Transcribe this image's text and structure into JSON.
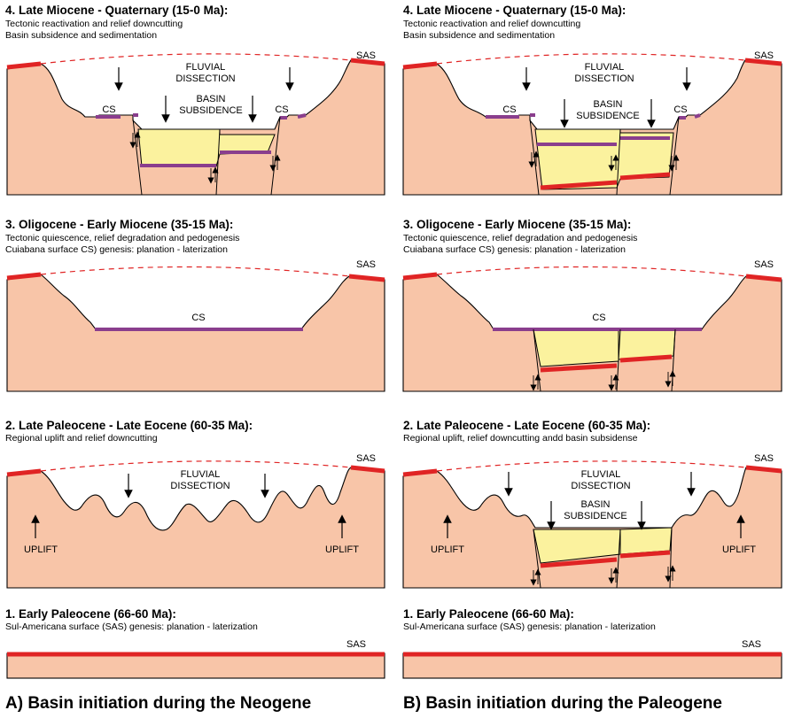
{
  "panels": {
    "a4": {
      "title": "4. Late Miocene - Quaternary (15-0 Ma):",
      "line1": "Tectonic reactivation and relief downcutting",
      "line2": "Basin subsidence and sedimentation",
      "sas": "SAS",
      "fluvial1": "FLUVIAL",
      "fluvial2": "DISSECTION",
      "basin1": "BASIN",
      "basin2": "SUBSIDENCE",
      "cs_left": "CS",
      "cs_right": "CS"
    },
    "b4": {
      "title": "4. Late Miocene - Quaternary (15-0 Ma):",
      "line1": "Tectonic reactivation and relief downcutting",
      "line2": "Basin subsidence and sedimentation",
      "sas": "SAS",
      "fluvial1": "FLUVIAL",
      "fluvial2": "DISSECTION",
      "basin1": "BASIN",
      "basin2": "SUBSIDENCE",
      "cs_left": "CS",
      "cs_right": "CS"
    },
    "a3": {
      "title": "3. Oligocene - Early Miocene (35-15 Ma):",
      "line1": "Tectonic quiescence, relief degradation and pedogenesis",
      "line2": "Cuiabana surface CS) genesis: planation - laterization",
      "sas": "SAS",
      "cs": "CS"
    },
    "b3": {
      "title": "3. Oligocene - Early Miocene (35-15 Ma):",
      "line1": "Tectonic quiescence, relief degradation and pedogenesis",
      "line2": "Cuiabana surface CS) genesis: planation - laterization",
      "sas": "SAS",
      "cs": "CS"
    },
    "a2": {
      "title": "2. Late Paleocene - Late Eocene (60-35 Ma):",
      "line1": "Regional uplift and relief downcutting",
      "sas": "SAS",
      "fluvial1": "FLUVIAL",
      "fluvial2": "DISSECTION",
      "uplift_left": "UPLIFT",
      "uplift_right": "UPLIFT"
    },
    "b2": {
      "title": "2. Late Paleocene - Late Eocene (60-35 Ma):",
      "line1": "Regional uplift, relief downcutting andd basin subsidense",
      "sas": "SAS",
      "fluvial1": "FLUVIAL",
      "fluvial2": "DISSECTION",
      "basin1": "BASIN",
      "basin2": "SUBSIDENCE",
      "uplift_left": "UPLIFT",
      "uplift_right": "UPLIFT"
    },
    "a1": {
      "title": "1. Early Paleocene (66-60 Ma):",
      "line1": "Sul-Americana surface (SAS) genesis: planation - laterization",
      "sas": "SAS"
    },
    "b1": {
      "title": "1. Early Paleocene (66-60 Ma):",
      "line1": "Sul-Americana surface (SAS) genesis: planation - laterization",
      "sas": "SAS"
    }
  },
  "footer": {
    "left": "A) Basin initiation during the Neogene",
    "right": "B) Basin initiation during the Paleogene"
  },
  "colors": {
    "rock": "#f8c5a8",
    "sediment": "#fbf29e",
    "sas_laterite": "#e02424",
    "cs_laterite": "#8a3e8d"
  }
}
